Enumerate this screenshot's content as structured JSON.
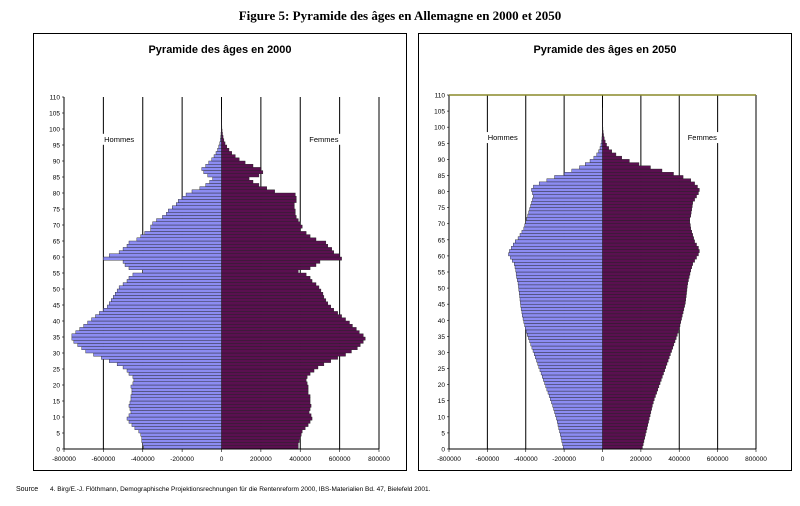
{
  "figure_title": "Figure 5: Pyramide des âges en Allemagne en 2000 et 2050",
  "source_label": "Source",
  "source_text": "4. Birg/E.-J. Flöthmann, Demographische Projektionsrechnungen für die Rentenreform 2000, IBS-Materialien Bd. 47, Bielefeld 2001.",
  "colors": {
    "men": "#8c8cf2",
    "women": "#5a1050",
    "bar_edge": "#202020",
    "grid": "#000000",
    "frame_2050": "#8a8a2a"
  },
  "chart_data": [
    {
      "type": "bar",
      "orientation": "horizontal",
      "title": "Pyramide des âges en 2000",
      "ylim": [
        0,
        110
      ],
      "y_ticks": [
        0,
        5,
        10,
        15,
        20,
        25,
        30,
        35,
        40,
        45,
        50,
        55,
        60,
        65,
        70,
        75,
        80,
        85,
        90,
        95,
        100,
        105,
        110
      ],
      "xlim": [
        -800000,
        800000
      ],
      "x_ticks": [
        -800000,
        -600000,
        -400000,
        -200000,
        0,
        200000,
        400000,
        600000,
        800000
      ],
      "x_tick_labels": [
        "-800000",
        "-600000",
        "-400000",
        "-200000",
        "0",
        "200000",
        "400000",
        "600000",
        "800000"
      ],
      "grid": true,
      "annotations": [
        "Hommes",
        "Femmes"
      ],
      "series": [
        {
          "name": "Hommes",
          "side": "left",
          "ages": [
            0,
            1,
            2,
            3,
            4,
            5,
            6,
            7,
            8,
            9,
            10,
            11,
            12,
            13,
            14,
            15,
            16,
            17,
            18,
            19,
            20,
            21,
            22,
            23,
            24,
            25,
            26,
            27,
            28,
            29,
            30,
            31,
            32,
            33,
            34,
            35,
            36,
            37,
            38,
            39,
            40,
            41,
            42,
            43,
            44,
            45,
            46,
            47,
            48,
            49,
            50,
            51,
            52,
            53,
            54,
            55,
            56,
            57,
            58,
            59,
            60,
            61,
            62,
            63,
            64,
            65,
            66,
            67,
            68,
            69,
            70,
            71,
            72,
            73,
            74,
            75,
            76,
            77,
            78,
            79,
            80,
            81,
            82,
            83,
            84,
            85,
            86,
            87,
            88,
            89,
            90,
            91,
            92,
            93,
            94,
            95,
            96,
            97,
            98,
            99,
            100,
            101,
            102,
            103,
            104,
            105
          ],
          "values": [
            -395000,
            -400000,
            -405000,
            -405000,
            -410000,
            -420000,
            -440000,
            -455000,
            -470000,
            -480000,
            -470000,
            -460000,
            -465000,
            -470000,
            -465000,
            -460000,
            -460000,
            -455000,
            -455000,
            -460000,
            -450000,
            -445000,
            -450000,
            -470000,
            -480000,
            -500000,
            -530000,
            -570000,
            -610000,
            -650000,
            -690000,
            -710000,
            -730000,
            -750000,
            -760000,
            -760000,
            -740000,
            -720000,
            -700000,
            -680000,
            -660000,
            -640000,
            -620000,
            -600000,
            -580000,
            -570000,
            -560000,
            -550000,
            -540000,
            -530000,
            -520000,
            -500000,
            -480000,
            -470000,
            -450000,
            -400000,
            -470000,
            -490000,
            -500000,
            -600000,
            -570000,
            -520000,
            -500000,
            -480000,
            -470000,
            -430000,
            -410000,
            -390000,
            -360000,
            -360000,
            -350000,
            -330000,
            -300000,
            -280000,
            -270000,
            -250000,
            -230000,
            -220000,
            -200000,
            -180000,
            -150000,
            -110000,
            -80000,
            -60000,
            -45000,
            -70000,
            -90000,
            -100000,
            -80000,
            -65000,
            -50000,
            -38000,
            -28000,
            -20000,
            -14000,
            -9000,
            -6000,
            -4000,
            -2500,
            -1500,
            -900,
            -500,
            -300,
            -150,
            -80,
            -40
          ]
        },
        {
          "name": "Femmes",
          "side": "right",
          "ages": [
            0,
            1,
            2,
            3,
            4,
            5,
            6,
            7,
            8,
            9,
            10,
            11,
            12,
            13,
            14,
            15,
            16,
            17,
            18,
            19,
            20,
            21,
            22,
            23,
            24,
            25,
            26,
            27,
            28,
            29,
            30,
            31,
            32,
            33,
            34,
            35,
            36,
            37,
            38,
            39,
            40,
            41,
            42,
            43,
            44,
            45,
            46,
            47,
            48,
            49,
            50,
            51,
            52,
            53,
            54,
            55,
            56,
            57,
            58,
            59,
            60,
            61,
            62,
            63,
            64,
            65,
            66,
            67,
            68,
            69,
            70,
            71,
            72,
            73,
            74,
            75,
            76,
            77,
            78,
            79,
            80,
            81,
            82,
            83,
            84,
            85,
            86,
            87,
            88,
            89,
            90,
            91,
            92,
            93,
            94,
            95,
            96,
            97,
            98,
            99,
            100,
            101,
            102,
            103,
            104,
            105
          ],
          "values": [
            390000,
            390000,
            395000,
            400000,
            405000,
            410000,
            425000,
            440000,
            450000,
            460000,
            455000,
            445000,
            450000,
            455000,
            450000,
            450000,
            450000,
            440000,
            440000,
            440000,
            435000,
            430000,
            435000,
            450000,
            470000,
            490000,
            520000,
            555000,
            590000,
            630000,
            660000,
            690000,
            705000,
            720000,
            730000,
            720000,
            700000,
            685000,
            665000,
            650000,
            630000,
            610000,
            590000,
            570000,
            555000,
            540000,
            530000,
            520000,
            515000,
            505000,
            495000,
            480000,
            460000,
            450000,
            430000,
            390000,
            450000,
            480000,
            500000,
            610000,
            600000,
            570000,
            560000,
            540000,
            530000,
            480000,
            450000,
            430000,
            400000,
            410000,
            400000,
            390000,
            380000,
            375000,
            375000,
            370000,
            370000,
            380000,
            380000,
            375000,
            270000,
            230000,
            190000,
            160000,
            140000,
            190000,
            210000,
            200000,
            160000,
            120000,
            90000,
            70000,
            52000,
            38000,
            27000,
            18000,
            12000,
            8000,
            5000,
            3000,
            1800,
            1000,
            600,
            300,
            150,
            80
          ]
        }
      ]
    },
    {
      "type": "bar",
      "orientation": "horizontal",
      "title": "Pyramide des âges en 2050",
      "ylim": [
        0,
        110
      ],
      "y_ticks": [
        0,
        5,
        10,
        15,
        20,
        25,
        30,
        35,
        40,
        45,
        50,
        55,
        60,
        65,
        70,
        75,
        80,
        85,
        90,
        95,
        100,
        105,
        110
      ],
      "xlim": [
        -800000,
        800000
      ],
      "x_ticks": [
        -800000,
        -600000,
        -400000,
        -200000,
        0,
        200000,
        400000,
        600000,
        800000
      ],
      "x_tick_labels": [
        "-800000",
        "-600000",
        "-400000",
        "-200000",
        "0",
        "200000",
        "400000",
        "600000",
        "800000"
      ],
      "grid": true,
      "annotations": [
        "Hommes",
        "Femmes"
      ],
      "series": [
        {
          "name": "Hommes",
          "side": "left",
          "ages": [
            0,
            1,
            2,
            3,
            4,
            5,
            6,
            7,
            8,
            9,
            10,
            11,
            12,
            13,
            14,
            15,
            16,
            17,
            18,
            19,
            20,
            21,
            22,
            23,
            24,
            25,
            26,
            27,
            28,
            29,
            30,
            31,
            32,
            33,
            34,
            35,
            36,
            37,
            38,
            39,
            40,
            41,
            42,
            43,
            44,
            45,
            46,
            47,
            48,
            49,
            50,
            51,
            52,
            53,
            54,
            55,
            56,
            57,
            58,
            59,
            60,
            61,
            62,
            63,
            64,
            65,
            66,
            67,
            68,
            69,
            70,
            71,
            72,
            73,
            74,
            75,
            76,
            77,
            78,
            79,
            80,
            81,
            82,
            83,
            84,
            85,
            86,
            87,
            88,
            89,
            90,
            91,
            92,
            93,
            94,
            95,
            96,
            97,
            98,
            99,
            100,
            101,
            102,
            103,
            104,
            105
          ],
          "values": [
            -205000,
            -208000,
            -212000,
            -216000,
            -220000,
            -224000,
            -228000,
            -232000,
            -236000,
            -240000,
            -245000,
            -250000,
            -255000,
            -260000,
            -266000,
            -272000,
            -278000,
            -284000,
            -290000,
            -296000,
            -302000,
            -308000,
            -314000,
            -320000,
            -326000,
            -332000,
            -338000,
            -344000,
            -350000,
            -356000,
            -362000,
            -368000,
            -374000,
            -380000,
            -386000,
            -392000,
            -398000,
            -402000,
            -406000,
            -410000,
            -414000,
            -418000,
            -420000,
            -424000,
            -426000,
            -428000,
            -430000,
            -432000,
            -434000,
            -436000,
            -438000,
            -440000,
            -444000,
            -448000,
            -450000,
            -452000,
            -456000,
            -460000,
            -470000,
            -480000,
            -490000,
            -485000,
            -475000,
            -465000,
            -455000,
            -440000,
            -430000,
            -420000,
            -410000,
            -405000,
            -400000,
            -395000,
            -390000,
            -385000,
            -380000,
            -375000,
            -370000,
            -365000,
            -360000,
            -365000,
            -370000,
            -360000,
            -330000,
            -290000,
            -250000,
            -200000,
            -160000,
            -120000,
            -90000,
            -65000,
            -45000,
            -30000,
            -20000,
            -13000,
            -8000,
            -5000,
            -3000,
            -2000,
            -1200,
            -700,
            -400,
            -200,
            -100,
            -50,
            -25,
            -10
          ]
        },
        {
          "name": "Femmes",
          "side": "right",
          "ages": [
            0,
            1,
            2,
            3,
            4,
            5,
            6,
            7,
            8,
            9,
            10,
            11,
            12,
            13,
            14,
            15,
            16,
            17,
            18,
            19,
            20,
            21,
            22,
            23,
            24,
            25,
            26,
            27,
            28,
            29,
            30,
            31,
            32,
            33,
            34,
            35,
            36,
            37,
            38,
            39,
            40,
            41,
            42,
            43,
            44,
            45,
            46,
            47,
            48,
            49,
            50,
            51,
            52,
            53,
            54,
            55,
            56,
            57,
            58,
            59,
            60,
            61,
            62,
            63,
            64,
            65,
            66,
            67,
            68,
            69,
            70,
            71,
            72,
            73,
            74,
            75,
            76,
            77,
            78,
            79,
            80,
            81,
            82,
            83,
            84,
            85,
            86,
            87,
            88,
            89,
            90,
            91,
            92,
            93,
            94,
            95,
            96,
            97,
            98,
            99,
            100,
            101,
            102,
            103,
            104,
            105
          ],
          "values": [
            208000,
            212000,
            216000,
            220000,
            224000,
            228000,
            232000,
            236000,
            240000,
            244000,
            248000,
            252000,
            256000,
            260000,
            265000,
            270000,
            276000,
            282000,
            288000,
            294000,
            300000,
            306000,
            312000,
            318000,
            324000,
            330000,
            336000,
            342000,
            348000,
            354000,
            360000,
            366000,
            372000,
            378000,
            384000,
            390000,
            396000,
            400000,
            404000,
            408000,
            412000,
            416000,
            420000,
            424000,
            428000,
            432000,
            434000,
            436000,
            438000,
            440000,
            442000,
            444000,
            448000,
            452000,
            456000,
            460000,
            465000,
            470000,
            480000,
            490000,
            500000,
            505000,
            500000,
            490000,
            480000,
            475000,
            470000,
            465000,
            460000,
            458000,
            455000,
            455000,
            460000,
            462000,
            465000,
            468000,
            470000,
            480000,
            490000,
            500000,
            505000,
            495000,
            480000,
            460000,
            420000,
            370000,
            310000,
            250000,
            190000,
            140000,
            100000,
            70000,
            48000,
            32000,
            21000,
            14000,
            9000,
            5500,
            3300,
            2000,
            1200,
            700,
            400,
            200,
            100,
            50
          ]
        }
      ]
    }
  ]
}
